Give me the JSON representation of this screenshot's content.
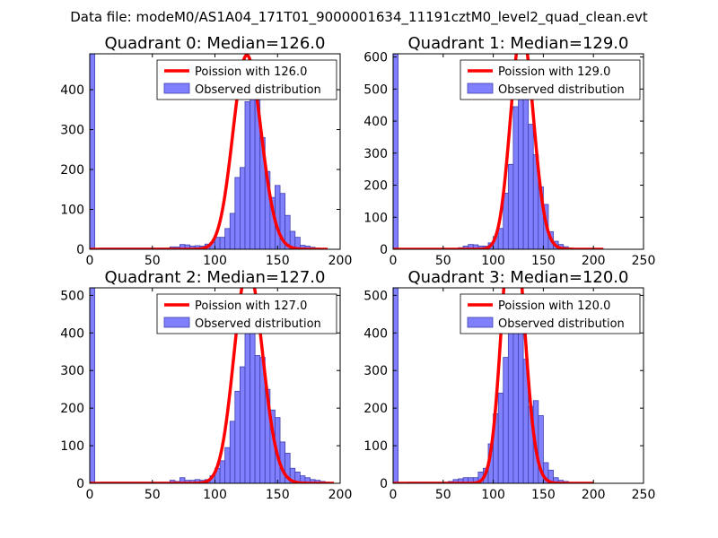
{
  "figure_title": "Data file: modeM0/AS1A04_171T01_9000001634_11191cztM0_level2_quad_clean.evt",
  "colors": {
    "bar_fill": "#8080ff",
    "bar_edge": "#3f3fae",
    "line": "#ff0000"
  },
  "chart_data": [
    {
      "type": "bar",
      "title": "Quadrant 0: Median=126.0",
      "xlim": [
        0,
        200
      ],
      "ylim": [
        0,
        490
      ],
      "xticks": [
        0,
        50,
        100,
        150,
        200
      ],
      "yticks": [
        0,
        100,
        200,
        300,
        400
      ],
      "legend": {
        "line_label": "Poission with 126.0",
        "bar_label": "Observed distribution",
        "placement": "upper right"
      },
      "lambda": 126.0,
      "curve_x_range": [
        0,
        190
      ],
      "bin_width": 4,
      "bins": [
        [
          0,
          490
        ],
        [
          8,
          3
        ],
        [
          12,
          3
        ],
        [
          16,
          3
        ],
        [
          20,
          3
        ],
        [
          24,
          3
        ],
        [
          28,
          3
        ],
        [
          32,
          3
        ],
        [
          36,
          3
        ],
        [
          40,
          3
        ],
        [
          44,
          3
        ],
        [
          48,
          3
        ],
        [
          52,
          3
        ],
        [
          56,
          3
        ],
        [
          60,
          3
        ],
        [
          64,
          6
        ],
        [
          68,
          6
        ],
        [
          72,
          12
        ],
        [
          76,
          11
        ],
        [
          80,
          8
        ],
        [
          84,
          9
        ],
        [
          88,
          8
        ],
        [
          92,
          13
        ],
        [
          96,
          17
        ],
        [
          100,
          30
        ],
        [
          104,
          30
        ],
        [
          108,
          52
        ],
        [
          112,
          90
        ],
        [
          116,
          180
        ],
        [
          120,
          205
        ],
        [
          124,
          370
        ],
        [
          128,
          380
        ],
        [
          132,
          375
        ],
        [
          136,
          280
        ],
        [
          140,
          195
        ],
        [
          144,
          130
        ],
        [
          148,
          160
        ],
        [
          152,
          140
        ],
        [
          156,
          85
        ],
        [
          160,
          45
        ],
        [
          164,
          30
        ],
        [
          168,
          10
        ],
        [
          172,
          8
        ],
        [
          176,
          5
        ],
        [
          180,
          3
        ]
      ]
    },
    {
      "type": "bar",
      "title": "Quadrant 1: Median=129.0",
      "xlim": [
        0,
        250
      ],
      "ylim": [
        0,
        610
      ],
      "xticks": [
        0,
        50,
        100,
        150,
        200,
        250
      ],
      "yticks": [
        0,
        100,
        200,
        300,
        400,
        500,
        600
      ],
      "legend": {
        "line_label": "Poission with 129.0",
        "bar_label": "Observed distribution",
        "placement": "upper right"
      },
      "lambda": 129.0,
      "curve_x_range": [
        0,
        210
      ],
      "bin_width": 5,
      "bins": [
        [
          0,
          610
        ],
        [
          20,
          3
        ],
        [
          25,
          3
        ],
        [
          30,
          3
        ],
        [
          35,
          3
        ],
        [
          40,
          3
        ],
        [
          45,
          3
        ],
        [
          50,
          3
        ],
        [
          55,
          3
        ],
        [
          60,
          3
        ],
        [
          65,
          5
        ],
        [
          70,
          10
        ],
        [
          75,
          15
        ],
        [
          80,
          14
        ],
        [
          85,
          10
        ],
        [
          90,
          10
        ],
        [
          95,
          20
        ],
        [
          100,
          40
        ],
        [
          105,
          65
        ],
        [
          110,
          175
        ],
        [
          115,
          265
        ],
        [
          120,
          445
        ],
        [
          125,
          590
        ],
        [
          130,
          480
        ],
        [
          135,
          390
        ],
        [
          140,
          295
        ],
        [
          145,
          195
        ],
        [
          150,
          140
        ],
        [
          155,
          55
        ],
        [
          160,
          25
        ],
        [
          165,
          15
        ],
        [
          170,
          8
        ],
        [
          175,
          4
        ]
      ]
    },
    {
      "type": "bar",
      "title": "Quadrant 2: Median=127.0",
      "xlim": [
        0,
        200
      ],
      "ylim": [
        0,
        520
      ],
      "xticks": [
        0,
        50,
        100,
        150,
        200
      ],
      "yticks": [
        0,
        100,
        200,
        300,
        400,
        500
      ],
      "legend": {
        "line_label": "Poission with 127.0",
        "bar_label": "Observed distribution",
        "placement": "upper right"
      },
      "lambda": 127.0,
      "curve_x_range": [
        0,
        195
      ],
      "bin_width": 4,
      "bins": [
        [
          0,
          520
        ],
        [
          8,
          3
        ],
        [
          12,
          3
        ],
        [
          16,
          3
        ],
        [
          20,
          3
        ],
        [
          24,
          3
        ],
        [
          28,
          3
        ],
        [
          32,
          3
        ],
        [
          36,
          3
        ],
        [
          40,
          3
        ],
        [
          44,
          3
        ],
        [
          48,
          3
        ],
        [
          52,
          3
        ],
        [
          56,
          3
        ],
        [
          60,
          3
        ],
        [
          64,
          8
        ],
        [
          68,
          5
        ],
        [
          72,
          15
        ],
        [
          76,
          8
        ],
        [
          80,
          8
        ],
        [
          84,
          10
        ],
        [
          88,
          8
        ],
        [
          92,
          10
        ],
        [
          96,
          20
        ],
        [
          100,
          40
        ],
        [
          104,
          60
        ],
        [
          108,
          95
        ],
        [
          112,
          165
        ],
        [
          116,
          245
        ],
        [
          120,
          310
        ],
        [
          124,
          460
        ],
        [
          128,
          420
        ],
        [
          132,
          340
        ],
        [
          136,
          335
        ],
        [
          140,
          250
        ],
        [
          144,
          195
        ],
        [
          148,
          175
        ],
        [
          152,
          110
        ],
        [
          156,
          80
        ],
        [
          160,
          40
        ],
        [
          164,
          30
        ],
        [
          168,
          20
        ],
        [
          172,
          15
        ],
        [
          176,
          10
        ],
        [
          180,
          8
        ],
        [
          184,
          5
        ],
        [
          188,
          3
        ]
      ]
    },
    {
      "type": "bar",
      "title": "Quadrant 3: Median=120.0",
      "xlim": [
        0,
        250
      ],
      "ylim": [
        0,
        520
      ],
      "xticks": [
        0,
        50,
        100,
        150,
        200,
        250
      ],
      "yticks": [
        0,
        100,
        200,
        300,
        400,
        500
      ],
      "legend": {
        "line_label": "Poission with 120.0",
        "bar_label": "Observed distribution",
        "placement": "upper right"
      },
      "lambda": 120.0,
      "curve_x_range": [
        0,
        200
      ],
      "bin_width": 5,
      "bins": [
        [
          0,
          520
        ],
        [
          15,
          3
        ],
        [
          20,
          3
        ],
        [
          25,
          3
        ],
        [
          30,
          3
        ],
        [
          35,
          3
        ],
        [
          40,
          3
        ],
        [
          45,
          3
        ],
        [
          50,
          3
        ],
        [
          55,
          5
        ],
        [
          60,
          10
        ],
        [
          65,
          12
        ],
        [
          70,
          15
        ],
        [
          75,
          15
        ],
        [
          80,
          15
        ],
        [
          85,
          30
        ],
        [
          90,
          40
        ],
        [
          95,
          105
        ],
        [
          100,
          185
        ],
        [
          105,
          240
        ],
        [
          110,
          335
        ],
        [
          115,
          470
        ],
        [
          120,
          495
        ],
        [
          125,
          460
        ],
        [
          130,
          330
        ],
        [
          135,
          205
        ],
        [
          140,
          220
        ],
        [
          145,
          180
        ],
        [
          150,
          55
        ],
        [
          155,
          35
        ],
        [
          160,
          15
        ],
        [
          165,
          8
        ],
        [
          170,
          5
        ]
      ]
    }
  ]
}
